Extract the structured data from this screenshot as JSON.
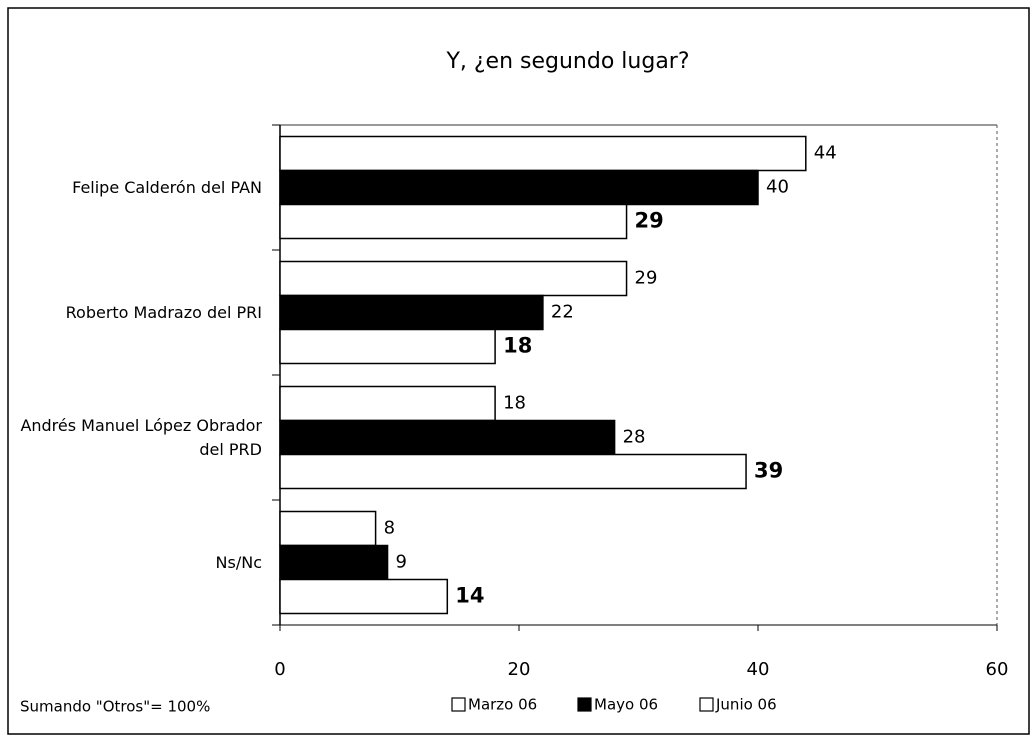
{
  "chart_data": {
    "type": "hbar",
    "title": "Y, ¿en segundo lugar?",
    "categories": [
      "Felipe Calderón del PAN",
      "Roberto Madrazo del PRI",
      "Andrés Manuel López Obrador del PRD",
      "Ns/Nc"
    ],
    "series": [
      {
        "name": "Marzo 06",
        "color": "#ffffff",
        "values": [
          44,
          29,
          18,
          8
        ]
      },
      {
        "name": "Mayo 06",
        "color": "#000000",
        "values": [
          40,
          22,
          28,
          9
        ]
      },
      {
        "name": "Junio 06",
        "color": "#ffffff",
        "values": [
          29,
          18,
          39,
          14
        ]
      }
    ],
    "xlim": [
      0,
      60
    ],
    "xticks": [
      0,
      20,
      40,
      60
    ],
    "note": "Sumando \"Otros\"= 100%"
  }
}
